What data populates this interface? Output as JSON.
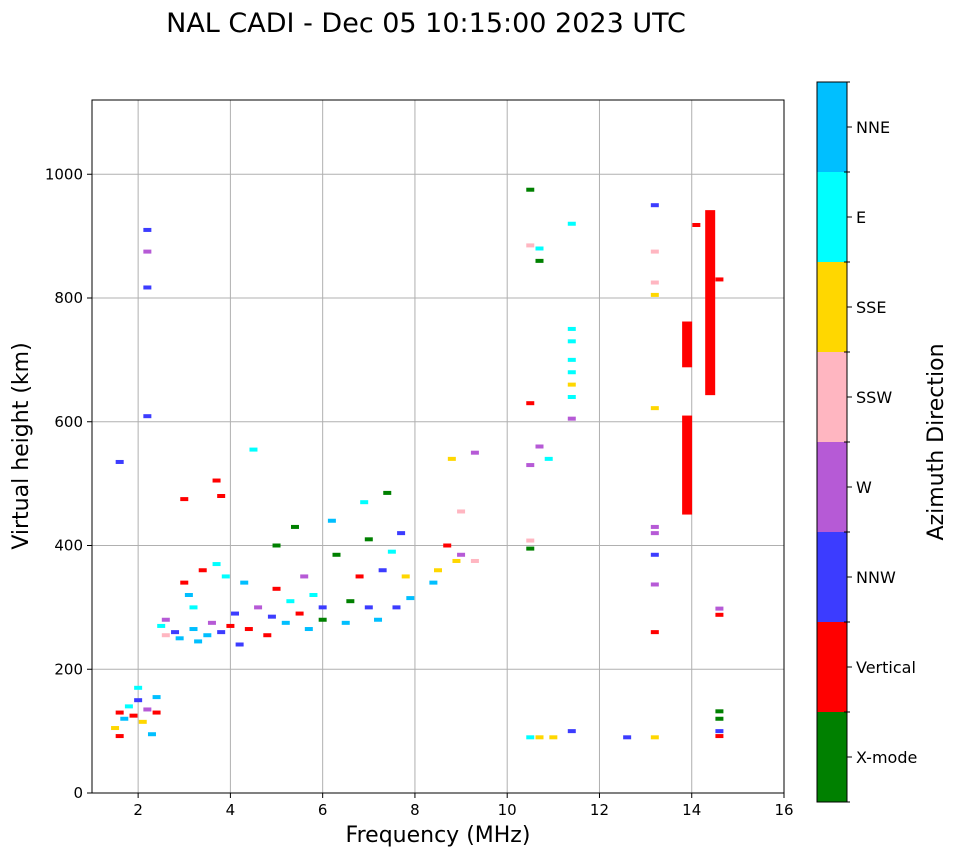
{
  "chart_data": {
    "type": "scatter",
    "title": "NAL CADI - Dec 05 10:15:00 2023 UTC",
    "xlabel": "Frequency (MHz)",
    "ylabel": "Virtual height (km)",
    "xlim": [
      1,
      16
    ],
    "ylim": [
      0,
      1120
    ],
    "xticks": [
      2,
      4,
      6,
      8,
      10,
      12,
      14,
      16
    ],
    "yticks": [
      0,
      200,
      400,
      600,
      800,
      1000
    ],
    "grid": true,
    "colorbar": {
      "title": "Azimuth Direction",
      "categories": [
        {
          "name": "X-mode",
          "color": "#008000"
        },
        {
          "name": "Vertical",
          "color": "#ff0000"
        },
        {
          "name": "NNW",
          "color": "#3c3cff"
        },
        {
          "name": "W",
          "color": "#b65ad6"
        },
        {
          "name": "SSW",
          "color": "#ffb6c1"
        },
        {
          "name": "SSE",
          "color": "#ffd700"
        },
        {
          "name": "E",
          "color": "#00ffff"
        },
        {
          "name": "NNE",
          "color": "#00bfff"
        }
      ]
    },
    "points": [
      {
        "f": 1.6,
        "h": 535,
        "d": "NNW"
      },
      {
        "f": 2.2,
        "h": 910,
        "d": "NNW"
      },
      {
        "f": 2.2,
        "h": 875,
        "d": "W"
      },
      {
        "f": 2.2,
        "h": 817,
        "d": "NNW"
      },
      {
        "f": 2.2,
        "h": 609,
        "d": "NNW"
      },
      {
        "f": 4.5,
        "h": 555,
        "d": "E"
      },
      {
        "f": 1.6,
        "h": 130,
        "d": "Vertical"
      },
      {
        "f": 1.7,
        "h": 120,
        "d": "NNE"
      },
      {
        "f": 1.8,
        "h": 140,
        "d": "E"
      },
      {
        "f": 1.9,
        "h": 125,
        "d": "Vertical"
      },
      {
        "f": 2.0,
        "h": 150,
        "d": "NNW"
      },
      {
        "f": 2.0,
        "h": 170,
        "d": "E"
      },
      {
        "f": 2.1,
        "h": 115,
        "d": "SSE"
      },
      {
        "f": 2.2,
        "h": 135,
        "d": "W"
      },
      {
        "f": 2.3,
        "h": 95,
        "d": "NNE"
      },
      {
        "f": 2.4,
        "h": 130,
        "d": "Vertical"
      },
      {
        "f": 2.4,
        "h": 155,
        "d": "NNE"
      },
      {
        "f": 1.6,
        "h": 92,
        "d": "Vertical"
      },
      {
        "f": 1.5,
        "h": 105,
        "d": "SSE"
      },
      {
        "f": 2.5,
        "h": 270,
        "d": "E"
      },
      {
        "f": 2.6,
        "h": 255,
        "d": "SSW"
      },
      {
        "f": 2.6,
        "h": 280,
        "d": "W"
      },
      {
        "f": 2.8,
        "h": 260,
        "d": "NNW"
      },
      {
        "f": 2.9,
        "h": 250,
        "d": "NNE"
      },
      {
        "f": 3.0,
        "h": 340,
        "d": "Vertical"
      },
      {
        "f": 3.0,
        "h": 475,
        "d": "Vertical"
      },
      {
        "f": 3.1,
        "h": 320,
        "d": "NNE"
      },
      {
        "f": 3.2,
        "h": 265,
        "d": "NNE"
      },
      {
        "f": 3.2,
        "h": 300,
        "d": "E"
      },
      {
        "f": 3.3,
        "h": 245,
        "d": "NNE"
      },
      {
        "f": 3.4,
        "h": 360,
        "d": "Vertical"
      },
      {
        "f": 3.5,
        "h": 255,
        "d": "NNE"
      },
      {
        "f": 3.6,
        "h": 275,
        "d": "W"
      },
      {
        "f": 3.7,
        "h": 370,
        "d": "E"
      },
      {
        "f": 3.7,
        "h": 505,
        "d": "Vertical"
      },
      {
        "f": 3.8,
        "h": 480,
        "d": "Vertical"
      },
      {
        "f": 3.8,
        "h": 260,
        "d": "NNW"
      },
      {
        "f": 3.9,
        "h": 350,
        "d": "E"
      },
      {
        "f": 4.0,
        "h": 270,
        "d": "Vertical"
      },
      {
        "f": 4.1,
        "h": 290,
        "d": "NNW"
      },
      {
        "f": 4.2,
        "h": 240,
        "d": "NNW"
      },
      {
        "f": 4.3,
        "h": 340,
        "d": "NNE"
      },
      {
        "f": 4.4,
        "h": 265,
        "d": "Vertical"
      },
      {
        "f": 4.6,
        "h": 300,
        "d": "W"
      },
      {
        "f": 4.8,
        "h": 255,
        "d": "Vertical"
      },
      {
        "f": 4.9,
        "h": 285,
        "d": "NNW"
      },
      {
        "f": 5.0,
        "h": 330,
        "d": "Vertical"
      },
      {
        "f": 5.0,
        "h": 400,
        "d": "X-mode"
      },
      {
        "f": 5.2,
        "h": 275,
        "d": "NNE"
      },
      {
        "f": 5.3,
        "h": 310,
        "d": "E"
      },
      {
        "f": 5.4,
        "h": 430,
        "d": "X-mode"
      },
      {
        "f": 5.5,
        "h": 290,
        "d": "Vertical"
      },
      {
        "f": 5.6,
        "h": 350,
        "d": "W"
      },
      {
        "f": 5.7,
        "h": 265,
        "d": "NNE"
      },
      {
        "f": 5.8,
        "h": 320,
        "d": "E"
      },
      {
        "f": 6.0,
        "h": 300,
        "d": "NNW"
      },
      {
        "f": 6.0,
        "h": 280,
        "d": "X-mode"
      },
      {
        "f": 6.2,
        "h": 440,
        "d": "NNE"
      },
      {
        "f": 6.3,
        "h": 385,
        "d": "X-mode"
      },
      {
        "f": 6.5,
        "h": 275,
        "d": "NNE"
      },
      {
        "f": 6.6,
        "h": 310,
        "d": "X-mode"
      },
      {
        "f": 6.8,
        "h": 350,
        "d": "Vertical"
      },
      {
        "f": 6.9,
        "h": 470,
        "d": "E"
      },
      {
        "f": 7.0,
        "h": 300,
        "d": "NNW"
      },
      {
        "f": 7.0,
        "h": 410,
        "d": "X-mode"
      },
      {
        "f": 7.2,
        "h": 280,
        "d": "NNE"
      },
      {
        "f": 7.3,
        "h": 360,
        "d": "NNW"
      },
      {
        "f": 7.4,
        "h": 485,
        "d": "X-mode"
      },
      {
        "f": 7.5,
        "h": 390,
        "d": "E"
      },
      {
        "f": 7.6,
        "h": 300,
        "d": "NNW"
      },
      {
        "f": 7.7,
        "h": 420,
        "d": "NNW"
      },
      {
        "f": 7.8,
        "h": 350,
        "d": "SSE"
      },
      {
        "f": 7.9,
        "h": 315,
        "d": "NNE"
      },
      {
        "f": 8.4,
        "h": 340,
        "d": "NNE"
      },
      {
        "f": 8.5,
        "h": 360,
        "d": "SSE"
      },
      {
        "f": 8.7,
        "h": 400,
        "d": "Vertical"
      },
      {
        "f": 8.9,
        "h": 375,
        "d": "SSE"
      },
      {
        "f": 9.0,
        "h": 455,
        "d": "SSW"
      },
      {
        "f": 9.0,
        "h": 385,
        "d": "W"
      },
      {
        "f": 8.8,
        "h": 540,
        "d": "SSE"
      },
      {
        "f": 9.3,
        "h": 375,
        "d": "SSW"
      },
      {
        "f": 9.3,
        "h": 550,
        "d": "W"
      },
      {
        "f": 10.5,
        "h": 975,
        "d": "X-mode"
      },
      {
        "f": 10.5,
        "h": 885,
        "d": "SSW"
      },
      {
        "f": 10.7,
        "h": 880,
        "d": "E"
      },
      {
        "f": 10.7,
        "h": 860,
        "d": "X-mode"
      },
      {
        "f": 10.5,
        "h": 630,
        "d": "Vertical"
      },
      {
        "f": 10.7,
        "h": 560,
        "d": "W"
      },
      {
        "f": 10.9,
        "h": 540,
        "d": "E"
      },
      {
        "f": 10.5,
        "h": 530,
        "d": "W"
      },
      {
        "f": 10.5,
        "h": 408,
        "d": "SSW"
      },
      {
        "f": 10.5,
        "h": 395,
        "d": "X-mode"
      },
      {
        "f": 10.5,
        "h": 90,
        "d": "E"
      },
      {
        "f": 10.7,
        "h": 90,
        "d": "SSE"
      },
      {
        "f": 11.0,
        "h": 90,
        "d": "SSE"
      },
      {
        "f": 11.4,
        "h": 920,
        "d": "E"
      },
      {
        "f": 11.4,
        "h": 750,
        "d": "E"
      },
      {
        "f": 11.4,
        "h": 730,
        "d": "E"
      },
      {
        "f": 11.4,
        "h": 700,
        "d": "E"
      },
      {
        "f": 11.4,
        "h": 680,
        "d": "E"
      },
      {
        "f": 11.4,
        "h": 660,
        "d": "SSE"
      },
      {
        "f": 11.4,
        "h": 640,
        "d": "E"
      },
      {
        "f": 11.4,
        "h": 605,
        "d": "W"
      },
      {
        "f": 11.4,
        "h": 100,
        "d": "NNW"
      },
      {
        "f": 12.6,
        "h": 90,
        "d": "NNW"
      },
      {
        "f": 13.2,
        "h": 950,
        "d": "NNW"
      },
      {
        "f": 13.2,
        "h": 875,
        "d": "SSW"
      },
      {
        "f": 13.2,
        "h": 825,
        "d": "SSW"
      },
      {
        "f": 13.2,
        "h": 805,
        "d": "SSE"
      },
      {
        "f": 13.2,
        "h": 622,
        "d": "SSE"
      },
      {
        "f": 13.2,
        "h": 430,
        "d": "W"
      },
      {
        "f": 13.2,
        "h": 420,
        "d": "W"
      },
      {
        "f": 13.2,
        "h": 385,
        "d": "NNW"
      },
      {
        "f": 13.2,
        "h": 337,
        "d": "W"
      },
      {
        "f": 13.2,
        "h": 260,
        "d": "Vertical"
      },
      {
        "f": 13.2,
        "h": 90,
        "d": "SSE"
      },
      {
        "f": 14.1,
        "h": 918,
        "d": "Vertical"
      },
      {
        "f": 14.6,
        "h": 830,
        "d": "Vertical"
      },
      {
        "f": 14.6,
        "h": 298,
        "d": "W"
      },
      {
        "f": 14.6,
        "h": 288,
        "d": "Vertical"
      },
      {
        "f": 14.6,
        "h": 132,
        "d": "X-mode"
      },
      {
        "f": 14.6,
        "h": 120,
        "d": "X-mode"
      },
      {
        "f": 14.6,
        "h": 100,
        "d": "NNW"
      },
      {
        "f": 14.6,
        "h": 92,
        "d": "Vertical"
      }
    ],
    "segments": [
      {
        "f": 14.4,
        "h_low": 643,
        "h_high": 942,
        "d": "Vertical"
      },
      {
        "f": 13.9,
        "h_low": 688,
        "h_high": 762,
        "d": "Vertical"
      },
      {
        "f": 13.9,
        "h_low": 450,
        "h_high": 610,
        "d": "Vertical"
      }
    ]
  }
}
